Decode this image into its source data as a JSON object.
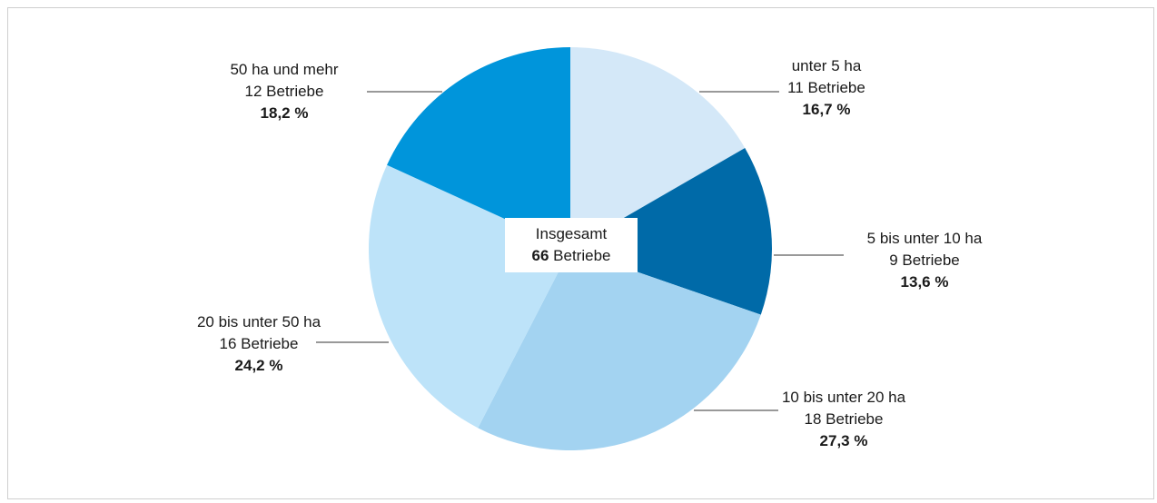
{
  "chart_data": {
    "type": "pie",
    "title": "",
    "center_label": {
      "line1": "Insgesamt",
      "total": "66",
      "unit": "Betriebe"
    },
    "slices": [
      {
        "label": "unter 5 ha",
        "count_text": "11 Betriebe",
        "count": 11,
        "percent_text": "16,7 %",
        "percent": 16.7,
        "color": "#d4e8f8"
      },
      {
        "label": "5 bis unter 10 ha",
        "count_text": "9 Betriebe",
        "count": 9,
        "percent_text": "13,6 %",
        "percent": 13.6,
        "color": "#006aa8"
      },
      {
        "label": "10 bis unter 20 ha",
        "count_text": "18 Betriebe",
        "count": 18,
        "percent_text": "27,3 %",
        "percent": 27.3,
        "color": "#a3d3f1"
      },
      {
        "label": "20 bis unter 50 ha",
        "count_text": "16 Betriebe",
        "count": 16,
        "percent_text": "24,2 %",
        "percent": 24.2,
        "color": "#bde3f9"
      },
      {
        "label": "50 ha und mehr",
        "count_text": "12 Betriebe",
        "count": 12,
        "percent_text": "18,2 %",
        "percent": 18.2,
        "color": "#0095db"
      }
    ]
  }
}
